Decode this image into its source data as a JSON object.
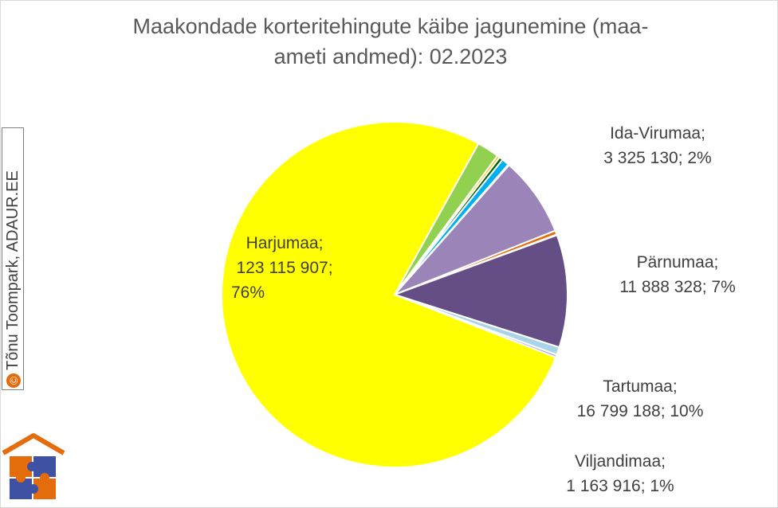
{
  "title_lines": [
    "Maakondade korteritehingute käibe jagunemine (maa-",
    "ameti andmed): 02.2023"
  ],
  "watermark": "Tõnu Toompark, ADAUR.EE",
  "chart_data": {
    "type": "pie",
    "title": "Maakondade korteritehingute käibe jagunemine (maa-ameti andmed): 02.2023",
    "start_from": "top, going clockwise",
    "slices": [
      {
        "name": "Ida-Virumaa",
        "value": 3325130,
        "percent": "2%",
        "color": "#92d050"
      },
      {
        "name": "",
        "value": 400000,
        "color": "#ffc000"
      },
      {
        "name": "",
        "value": 550000,
        "color": "#006400"
      },
      {
        "name": "",
        "value": 1100000,
        "color": "#00b0f0"
      },
      {
        "name": "",
        "value": 150000,
        "color": "#c5e0f5"
      },
      {
        "name": "Pärnumaa",
        "value": 11888328,
        "percent": "7%",
        "color": "#9a84b8"
      },
      {
        "name": "",
        "value": 600000,
        "color": "#e46c0a"
      },
      {
        "name": "",
        "value": 100000,
        "color": "#fde9d9"
      },
      {
        "name": "Tartumaa",
        "value": 16799188,
        "percent": "10%",
        "color": "#654d86"
      },
      {
        "name": "Viljandimaa",
        "value": 1163916,
        "percent": "1%",
        "color": "#a9d5e8"
      },
      {
        "name": "",
        "value": 400000,
        "color": "#b4a7d6"
      },
      {
        "name": "Harjumaa",
        "value": 123115907,
        "percent": "76%",
        "color": "#ffff00"
      }
    ]
  },
  "labels": {
    "ida_virumaa": {
      "line1": "Ida-Virumaa;",
      "line2": "3 325 130; 2%"
    },
    "parnumaa": {
      "line1": "Pärnumaa;",
      "line2": "11 888 328; 7%"
    },
    "tartumaa": {
      "line1": "Tartumaa;",
      "line2": "16 799 188; 10%"
    },
    "viljandimaa": {
      "line1": "Viljandimaa;",
      "line2": "1 163 916; 1%"
    },
    "harjumaa": {
      "line1": "Harjumaa;",
      "line2": "123 115 907;",
      "line3": "76%"
    }
  }
}
